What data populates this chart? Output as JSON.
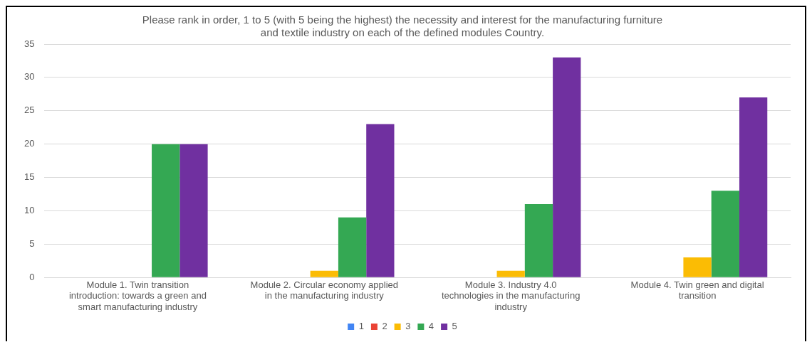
{
  "chart_data": {
    "type": "bar",
    "title": "Please rank in order, 1 to 5 (with 5 being the highest) the necessity and interest for the manufacturing furniture and textile industry on each of the defined modules Country.",
    "categories": [
      "Module 1. Twin transition introduction: towards a green and smart manufacturing industry",
      "Module 2. Circular economy applied in the manufacturing industry",
      "Module 3. Industry 4.0 technologies in the manufacturing industry",
      "Module 4. Twin green and digital transition"
    ],
    "series": [
      {
        "name": "1",
        "color": "#4285f4",
        "values": [
          0,
          0,
          0,
          0
        ]
      },
      {
        "name": "2",
        "color": "#ea4335",
        "values": [
          0,
          0,
          0,
          0
        ]
      },
      {
        "name": "3",
        "color": "#fbbc04",
        "values": [
          0,
          1,
          1,
          3
        ]
      },
      {
        "name": "4",
        "color": "#34a853",
        "values": [
          20,
          9,
          11,
          13
        ]
      },
      {
        "name": "5",
        "color": "#7030a0",
        "values": [
          20,
          23,
          33,
          27
        ]
      }
    ],
    "ylim": [
      0,
      35
    ],
    "yticks": [
      0,
      5,
      10,
      15,
      20,
      25,
      30,
      35
    ],
    "grid": "y",
    "legend": "bottom"
  }
}
